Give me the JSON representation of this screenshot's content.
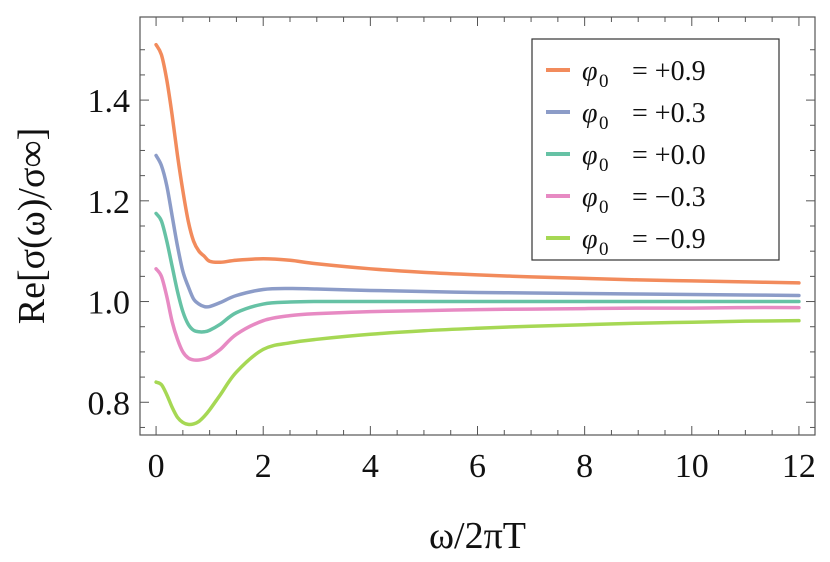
{
  "chart_data": {
    "type": "line",
    "title": "",
    "xlabel": "ω/2πT",
    "ylabel": "Re[σ(ω)/σ∞]",
    "xlim": [
      -0.3,
      12.3
    ],
    "ylim": [
      0.735,
      1.565
    ],
    "xticks": [
      0,
      2,
      4,
      6,
      8,
      10,
      12
    ],
    "xtick_labels": [
      "0",
      "2",
      "4",
      "6",
      "8",
      "10",
      "12"
    ],
    "yticks": [
      0.8,
      1.0,
      1.2,
      1.4
    ],
    "ytick_labels": [
      "0.8",
      "1.0",
      "1.2",
      "1.4"
    ],
    "legend_position": "top-right",
    "series": [
      {
        "name": "φ0 = +0.9",
        "legend_symbol": "φ",
        "legend_sub": "0",
        "legend_value": "= +0.9",
        "color": "#F28B5C",
        "x": [
          0,
          0.1,
          0.2,
          0.3,
          0.4,
          0.5,
          0.6,
          0.7,
          0.8,
          0.9,
          1.0,
          1.2,
          1.5,
          2.0,
          2.5,
          3.0,
          4.0,
          5.0,
          6.0,
          7.0,
          8.0,
          9.0,
          10.0,
          11.0,
          12.0
        ],
        "y": [
          1.51,
          1.49,
          1.44,
          1.37,
          1.29,
          1.22,
          1.16,
          1.12,
          1.1,
          1.09,
          1.08,
          1.078,
          1.082,
          1.085,
          1.082,
          1.075,
          1.065,
          1.058,
          1.053,
          1.049,
          1.046,
          1.043,
          1.041,
          1.039,
          1.037
        ]
      },
      {
        "name": "φ0 = +0.3",
        "legend_symbol": "φ",
        "legend_sub": "0",
        "legend_value": "= +0.3",
        "color": "#8C9CC8",
        "x": [
          0,
          0.1,
          0.2,
          0.3,
          0.4,
          0.5,
          0.6,
          0.7,
          0.8,
          0.9,
          1.0,
          1.2,
          1.5,
          2.0,
          2.5,
          3.0,
          4.0,
          5.0,
          6.0,
          7.0,
          8.0,
          9.0,
          10.0,
          11.0,
          12.0
        ],
        "y": [
          1.29,
          1.27,
          1.23,
          1.17,
          1.11,
          1.06,
          1.03,
          1.005,
          0.995,
          0.99,
          0.99,
          0.998,
          1.012,
          1.024,
          1.026,
          1.025,
          1.022,
          1.02,
          1.018,
          1.017,
          1.016,
          1.015,
          1.014,
          1.013,
          1.012
        ]
      },
      {
        "name": "φ0 = +0.0",
        "legend_symbol": "φ",
        "legend_sub": "0",
        "legend_value": "= +0.0",
        "color": "#66C2A5",
        "x": [
          0,
          0.1,
          0.2,
          0.3,
          0.4,
          0.5,
          0.6,
          0.7,
          0.8,
          0.9,
          1.0,
          1.2,
          1.5,
          2.0,
          2.5,
          3.0,
          4.0,
          5.0,
          6.0,
          7.0,
          8.0,
          9.0,
          10.0,
          11.0,
          12.0
        ],
        "y": [
          1.175,
          1.16,
          1.12,
          1.07,
          1.02,
          0.98,
          0.955,
          0.943,
          0.94,
          0.94,
          0.943,
          0.955,
          0.978,
          0.995,
          0.999,
          1.0,
          1.0,
          1.0,
          1.0,
          1.0,
          1.0,
          1.0,
          1.0,
          1.0,
          1.0
        ]
      },
      {
        "name": "φ0 = −0.3",
        "legend_symbol": "φ",
        "legend_sub": "0",
        "legend_value": "= −0.3",
        "color": "#E78AC3",
        "x": [
          0,
          0.1,
          0.2,
          0.3,
          0.4,
          0.5,
          0.6,
          0.7,
          0.8,
          0.9,
          1.0,
          1.2,
          1.5,
          2.0,
          2.5,
          3.0,
          4.0,
          5.0,
          6.0,
          7.0,
          8.0,
          9.0,
          10.0,
          11.0,
          12.0
        ],
        "y": [
          1.065,
          1.05,
          1.01,
          0.96,
          0.925,
          0.9,
          0.888,
          0.884,
          0.884,
          0.886,
          0.89,
          0.905,
          0.935,
          0.962,
          0.972,
          0.976,
          0.98,
          0.982,
          0.984,
          0.985,
          0.986,
          0.987,
          0.987,
          0.988,
          0.988
        ]
      },
      {
        "name": "φ0 = −0.9",
        "legend_symbol": "φ",
        "legend_sub": "0",
        "legend_value": "= −0.9",
        "color": "#A6D854",
        "x": [
          0,
          0.1,
          0.2,
          0.3,
          0.4,
          0.5,
          0.6,
          0.7,
          0.8,
          0.9,
          1.0,
          1.2,
          1.5,
          2.0,
          2.5,
          3.0,
          4.0,
          5.0,
          6.0,
          7.0,
          8.0,
          9.0,
          10.0,
          11.0,
          12.0
        ],
        "y": [
          0.84,
          0.835,
          0.815,
          0.79,
          0.77,
          0.76,
          0.756,
          0.757,
          0.762,
          0.772,
          0.785,
          0.815,
          0.86,
          0.905,
          0.918,
          0.925,
          0.935,
          0.942,
          0.947,
          0.951,
          0.954,
          0.957,
          0.959,
          0.961,
          0.962
        ]
      }
    ]
  }
}
